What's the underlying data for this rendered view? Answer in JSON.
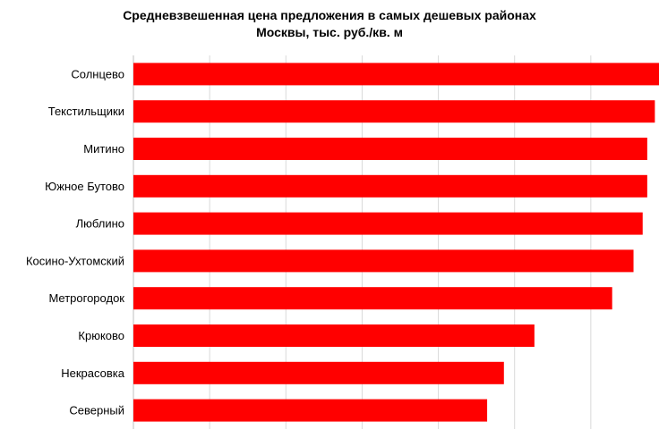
{
  "chart_data": {
    "type": "bar",
    "orientation": "horizontal",
    "title_lines": [
      "Средневзвешенная цена предложения в самых дешевых районах",
      "Москвы, тыс. руб./кв. м"
    ],
    "categories": [
      "Солнцево",
      "Текстильщики",
      "Митино",
      "Южное Бутово",
      "Люблино",
      "Косино-Ухтомский",
      "Метрогородок",
      "Крюково",
      "Некрасовка",
      "Северный"
    ],
    "values": [
      173,
      171,
      168.5,
      168.5,
      167,
      164,
      157,
      131.5,
      121.5,
      116
    ],
    "xlim": [
      0,
      175
    ],
    "grid_step": 25,
    "bar_color": "#ff0000",
    "grid": true,
    "legend": "none",
    "xlabel": "",
    "ylabel": ""
  }
}
